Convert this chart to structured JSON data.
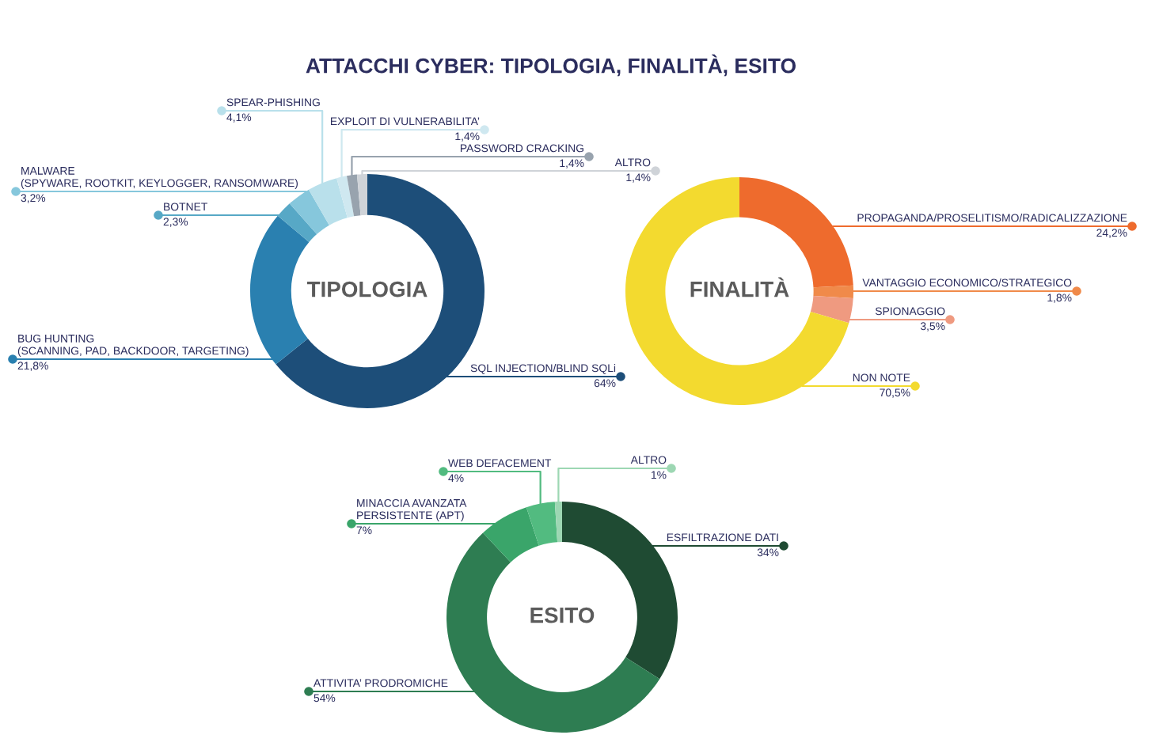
{
  "chart_data": [
    {
      "type": "donut",
      "title": "TIPOLOGIA",
      "annotations": [
        "ATTACCHI CYBER: TIPOLOGIA, FINALITÀ, ESITO"
      ],
      "categories": [
        "SQL INJECTION/BLIND SQLi",
        "BUG HUNTING\n(SCANNING, PAD, BACKDOOR, TARGETING)",
        "BOTNET",
        "MALWARE\n(SPYWARE, ROOTKIT, KEYLOGGER, RANSOMWARE)",
        "SPEAR-PHISHING",
        "EXPLOIT DI VULNERABILITA’",
        "PASSWORD CRACKING",
        "ALTRO"
      ],
      "values": [
        64,
        21.8,
        2.3,
        3.2,
        4.1,
        1.4,
        1.4,
        1.4
      ],
      "value_labels": [
        "64%",
        "21,8%",
        "2,3%",
        "3,2%",
        "4,1%",
        "1,4%",
        "1,4%",
        "1,4%"
      ],
      "colors": [
        "#1d4e79",
        "#2a80b0",
        "#57a8c6",
        "#86c7dc",
        "#b9e0eb",
        "#cfe8f0",
        "#98a3ae",
        "#cfd3d8"
      ]
    },
    {
      "type": "donut",
      "title": "FINALITÀ",
      "categories": [
        "PROPAGANDA/PROSELITISMO/RADICALIZZAZIONE",
        "VANTAGGIO ECONOMICO/STRATEGICO",
        "SPIONAGGIO",
        "NON NOTE"
      ],
      "values": [
        24.2,
        1.8,
        3.5,
        70.5
      ],
      "value_labels": [
        "24,2%",
        "1,8%",
        "3,5%",
        "70,5%"
      ],
      "colors": [
        "#ee6b2d",
        "#f08a4a",
        "#ef9a80",
        "#f3da2f"
      ]
    },
    {
      "type": "donut",
      "title": "ESITO",
      "categories": [
        "ESFILTRAZIONE DATI",
        "ATTIVITA’ PRODROMICHE",
        "MINACCIA AVANZATA\nPERSISTENTE (APT)",
        "WEB DEFACEMENT",
        "ALTRO"
      ],
      "values": [
        34,
        54,
        7,
        4,
        1
      ],
      "value_labels": [
        "34%",
        "54%",
        "7%",
        "4%",
        "1%"
      ],
      "colors": [
        "#1f4b33",
        "#2e7d52",
        "#3aa56a",
        "#52bb80",
        "#9dd7b3"
      ]
    }
  ]
}
